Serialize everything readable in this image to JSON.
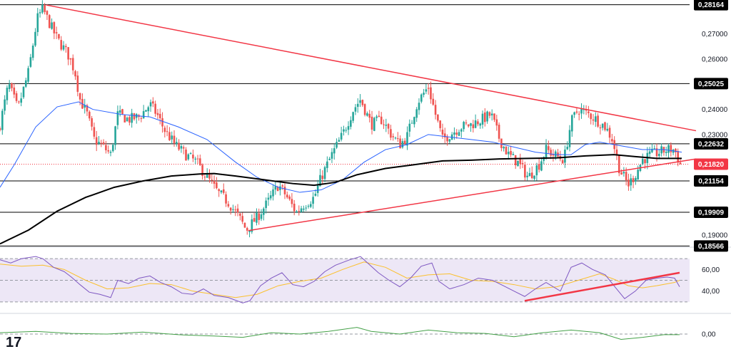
{
  "logo": "17",
  "colors": {
    "up": "#26a69a",
    "down": "#ef5350",
    "trendline": "#f23645",
    "sma_fast": "#2962ff",
    "sma_slow": "#000000",
    "rsi": "#7e57c2",
    "rsi_ma": "#fbc02d",
    "momentum": "#43a047",
    "level": "#000000",
    "current": "#f23645",
    "rsi_band": "#ede7f6"
  },
  "chart_data": [
    {
      "type": "candlestick",
      "panel": "price",
      "ylim": [
        0.1852,
        0.2835
      ],
      "y_tick_labels": [
        "0,27000",
        "0,26000",
        "0,24000",
        "0,23000",
        "0,19000"
      ],
      "y_ticks": [
        0.27,
        0.26,
        0.24,
        0.23,
        0.19
      ],
      "levels": [
        {
          "value": 0.28164,
          "label": "0,28164"
        },
        {
          "value": 0.25025,
          "label": "0,25025"
        },
        {
          "value": 0.22632,
          "label": "0,22632"
        },
        {
          "value": 0.21154,
          "label": "0,21154"
        },
        {
          "value": 0.19909,
          "label": "0,19909"
        },
        {
          "value": 0.18566,
          "label": "0,18566"
        }
      ],
      "current_price": {
        "value": 0.2182,
        "label": "0,21820"
      },
      "candle_count": 290,
      "close_path": [
        [
          0,
          0.234
        ],
        [
          12,
          0.25
        ],
        [
          25,
          0.24
        ],
        [
          40,
          0.255
        ],
        [
          52,
          0.276
        ],
        [
          60,
          0.28
        ],
        [
          68,
          0.275
        ],
        [
          80,
          0.268
        ],
        [
          95,
          0.262
        ],
        [
          105,
          0.255
        ],
        [
          112,
          0.244
        ],
        [
          122,
          0.238
        ],
        [
          132,
          0.228
        ],
        [
          145,
          0.225
        ],
        [
          155,
          0.222
        ],
        [
          165,
          0.238
        ],
        [
          180,
          0.236
        ],
        [
          195,
          0.237
        ],
        [
          210,
          0.242
        ],
        [
          220,
          0.238
        ],
        [
          230,
          0.232
        ],
        [
          245,
          0.226
        ],
        [
          260,
          0.222
        ],
        [
          275,
          0.219
        ],
        [
          290,
          0.213
        ],
        [
          305,
          0.207
        ],
        [
          320,
          0.203
        ],
        [
          335,
          0.197
        ],
        [
          345,
          0.192
        ],
        [
          360,
          0.197
        ],
        [
          375,
          0.203
        ],
        [
          390,
          0.21
        ],
        [
          400,
          0.206
        ],
        [
          415,
          0.199
        ],
        [
          425,
          0.202
        ],
        [
          440,
          0.205
        ],
        [
          450,
          0.213
        ],
        [
          465,
          0.222
        ],
        [
          480,
          0.23
        ],
        [
          495,
          0.24
        ],
        [
          505,
          0.244
        ],
        [
          520,
          0.234
        ],
        [
          535,
          0.236
        ],
        [
          548,
          0.23
        ],
        [
          560,
          0.226
        ],
        [
          570,
          0.229
        ],
        [
          585,
          0.243
        ],
        [
          600,
          0.249
        ],
        [
          610,
          0.238
        ],
        [
          620,
          0.228
        ],
        [
          630,
          0.23
        ],
        [
          645,
          0.233
        ],
        [
          660,
          0.234
        ],
        [
          675,
          0.236
        ],
        [
          688,
          0.238
        ],
        [
          700,
          0.228
        ],
        [
          712,
          0.222
        ],
        [
          725,
          0.219
        ],
        [
          740,
          0.213
        ],
        [
          755,
          0.218
        ],
        [
          765,
          0.224
        ],
        [
          775,
          0.222
        ],
        [
          790,
          0.22
        ],
        [
          800,
          0.235
        ],
        [
          810,
          0.24
        ],
        [
          825,
          0.238
        ],
        [
          835,
          0.236
        ],
        [
          848,
          0.233
        ],
        [
          858,
          0.228
        ],
        [
          868,
          0.216
        ],
        [
          880,
          0.21
        ],
        [
          890,
          0.214
        ],
        [
          900,
          0.22
        ],
        [
          912,
          0.222
        ],
        [
          925,
          0.223
        ],
        [
          935,
          0.224
        ],
        [
          945,
          0.224
        ],
        [
          953,
          0.218
        ]
      ],
      "trendlines": [
        {
          "from": [
            65,
            0.2815
          ],
          "to": [
            975,
            0.2315
          ]
        },
        {
          "from": [
            348,
            0.1918
          ],
          "to": [
            975,
            0.2203
          ]
        }
      ],
      "sma_fast_path": [
        [
          0,
          0.209
        ],
        [
          20,
          0.218
        ],
        [
          50,
          0.233
        ],
        [
          80,
          0.241
        ],
        [
          110,
          0.243
        ],
        [
          130,
          0.24
        ],
        [
          170,
          0.238
        ],
        [
          210,
          0.237
        ],
        [
          250,
          0.233
        ],
        [
          290,
          0.228
        ],
        [
          330,
          0.219
        ],
        [
          360,
          0.213
        ],
        [
          390,
          0.209
        ],
        [
          420,
          0.207
        ],
        [
          450,
          0.208
        ],
        [
          480,
          0.212
        ],
        [
          510,
          0.219
        ],
        [
          540,
          0.224
        ],
        [
          570,
          0.226
        ],
        [
          600,
          0.23
        ],
        [
          630,
          0.229
        ],
        [
          660,
          0.228
        ],
        [
          690,
          0.227
        ],
        [
          720,
          0.225
        ],
        [
          750,
          0.223
        ],
        [
          780,
          0.222
        ],
        [
          800,
          0.222
        ],
        [
          820,
          0.226
        ],
        [
          840,
          0.227
        ],
        [
          860,
          0.226
        ],
        [
          880,
          0.225
        ],
        [
          900,
          0.224
        ],
        [
          930,
          0.224
        ],
        [
          955,
          0.223
        ]
      ],
      "sma_slow_path": [
        [
          0,
          0.1865
        ],
        [
          40,
          0.192
        ],
        [
          80,
          0.1995
        ],
        [
          120,
          0.205
        ],
        [
          160,
          0.209
        ],
        [
          200,
          0.2115
        ],
        [
          240,
          0.2135
        ],
        [
          280,
          0.2143
        ],
        [
          300,
          0.2145
        ],
        [
          330,
          0.2135
        ],
        [
          370,
          0.212
        ],
        [
          410,
          0.2105
        ],
        [
          440,
          0.2098
        ],
        [
          470,
          0.211
        ],
        [
          500,
          0.214
        ],
        [
          540,
          0.2165
        ],
        [
          580,
          0.218
        ],
        [
          620,
          0.2195
        ],
        [
          660,
          0.2198
        ],
        [
          700,
          0.2203
        ],
        [
          740,
          0.2205
        ],
        [
          780,
          0.2207
        ],
        [
          820,
          0.2215
        ],
        [
          860,
          0.222
        ],
        [
          890,
          0.2212
        ],
        [
          920,
          0.2205
        ],
        [
          955,
          0.2205
        ]
      ]
    },
    {
      "type": "line",
      "panel": "rsi",
      "ylim": [
        20,
        80
      ],
      "y_ticks": [
        60,
        40
      ],
      "y_tick_labels": [
        "60,00",
        "40,00"
      ],
      "band": [
        30,
        70
      ],
      "midline": 50,
      "trendline": {
        "from": [
          735,
          31
        ],
        "to": [
          952,
          57
        ]
      },
      "rsi_path": [
        [
          0,
          69
        ],
        [
          15,
          66
        ],
        [
          30,
          70
        ],
        [
          50,
          72
        ],
        [
          60,
          70
        ],
        [
          75,
          62
        ],
        [
          90,
          58
        ],
        [
          100,
          53
        ],
        [
          112,
          46
        ],
        [
          125,
          39
        ],
        [
          140,
          37
        ],
        [
          155,
          34
        ],
        [
          165,
          50
        ],
        [
          180,
          47
        ],
        [
          195,
          52
        ],
        [
          210,
          54
        ],
        [
          225,
          48
        ],
        [
          240,
          44
        ],
        [
          255,
          38
        ],
        [
          270,
          37
        ],
        [
          285,
          42
        ],
        [
          300,
          36
        ],
        [
          320,
          34
        ],
        [
          340,
          29
        ],
        [
          350,
          31
        ],
        [
          365,
          45
        ],
        [
          380,
          52
        ],
        [
          395,
          57
        ],
        [
          410,
          46
        ],
        [
          425,
          44
        ],
        [
          440,
          49
        ],
        [
          455,
          58
        ],
        [
          470,
          64
        ],
        [
          490,
          69
        ],
        [
          505,
          72
        ],
        [
          515,
          66
        ],
        [
          530,
          57
        ],
        [
          545,
          50
        ],
        [
          560,
          44
        ],
        [
          575,
          52
        ],
        [
          590,
          63
        ],
        [
          605,
          66
        ],
        [
          615,
          49
        ],
        [
          630,
          42
        ],
        [
          650,
          46
        ],
        [
          670,
          52
        ],
        [
          690,
          50
        ],
        [
          705,
          45
        ],
        [
          720,
          40
        ],
        [
          735,
          35
        ],
        [
          750,
          42
        ],
        [
          765,
          48
        ],
        [
          785,
          40
        ],
        [
          800,
          62
        ],
        [
          815,
          66
        ],
        [
          830,
          60
        ],
        [
          848,
          55
        ],
        [
          860,
          45
        ],
        [
          875,
          33
        ],
        [
          890,
          40
        ],
        [
          905,
          50
        ],
        [
          920,
          52
        ],
        [
          935,
          53
        ],
        [
          945,
          52
        ],
        [
          952,
          44
        ]
      ],
      "rsi_ma_path": [
        [
          0,
          65
        ],
        [
          30,
          63
        ],
        [
          60,
          64
        ],
        [
          90,
          60
        ],
        [
          120,
          50
        ],
        [
          150,
          42
        ],
        [
          180,
          43
        ],
        [
          210,
          47
        ],
        [
          240,
          46
        ],
        [
          270,
          40
        ],
        [
          300,
          37
        ],
        [
          330,
          34
        ],
        [
          360,
          37
        ],
        [
          390,
          45
        ],
        [
          420,
          49
        ],
        [
          450,
          52
        ],
        [
          480,
          60
        ],
        [
          510,
          67
        ],
        [
          540,
          62
        ],
        [
          570,
          52
        ],
        [
          600,
          55
        ],
        [
          630,
          56
        ],
        [
          660,
          50
        ],
        [
          690,
          49
        ],
        [
          720,
          46
        ],
        [
          750,
          42
        ],
        [
          780,
          44
        ],
        [
          810,
          50
        ],
        [
          840,
          56
        ],
        [
          860,
          51
        ],
        [
          880,
          45
        ],
        [
          900,
          43
        ],
        [
          920,
          45
        ],
        [
          945,
          48
        ],
        [
          952,
          50
        ]
      ]
    },
    {
      "type": "line",
      "panel": "momentum",
      "ylim": [
        -0.03,
        0.03
      ],
      "y_ticks": [
        0.0
      ],
      "y_tick_labels": [
        "0,00"
      ],
      "zero_line": 0.0,
      "momentum_path": [
        [
          0,
          0.002
        ],
        [
          50,
          0.004
        ],
        [
          100,
          0.001
        ],
        [
          150,
          0.0
        ],
        [
          200,
          0.003
        ],
        [
          250,
          -0.001
        ],
        [
          300,
          -0.003
        ],
        [
          340,
          -0.005
        ],
        [
          380,
          0.002
        ],
        [
          420,
          0.0
        ],
        [
          460,
          0.004
        ],
        [
          500,
          0.01
        ],
        [
          520,
          0.004
        ],
        [
          560,
          0.0
        ],
        [
          600,
          0.006
        ],
        [
          640,
          0.002
        ],
        [
          680,
          0.001
        ],
        [
          720,
          -0.004
        ],
        [
          760,
          0.002
        ],
        [
          800,
          0.006
        ],
        [
          840,
          0.002
        ],
        [
          870,
          -0.008
        ],
        [
          900,
          -0.005
        ],
        [
          930,
          -0.001
        ],
        [
          952,
          -0.001
        ]
      ]
    }
  ]
}
